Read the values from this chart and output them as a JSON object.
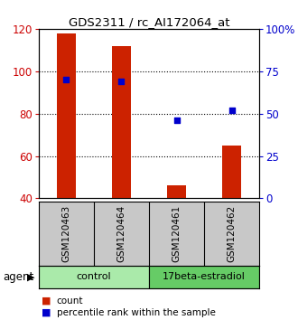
{
  "title": "GDS2311 / rc_AI172064_at",
  "samples": [
    "GSM120463",
    "GSM120464",
    "GSM120461",
    "GSM120462"
  ],
  "counts": [
    118,
    112,
    46,
    65
  ],
  "percentile_ranks": [
    70,
    69,
    46,
    52
  ],
  "ylim_left": [
    40,
    120
  ],
  "ylim_right": [
    0,
    100
  ],
  "yticks_left": [
    40,
    60,
    80,
    100,
    120
  ],
  "yticks_right": [
    0,
    25,
    50,
    75,
    100
  ],
  "ytick_labels_right": [
    "0",
    "25",
    "50",
    "75",
    "100%"
  ],
  "bar_color": "#cc2200",
  "dot_color": "#0000cc",
  "plot_bg": "#ffffff",
  "sample_bg": "#c8c8c8",
  "control_bg": "#aaeaaa",
  "estradiol_bg": "#66cc66",
  "legend_count": "count",
  "legend_pct": "percentile rank within the sample",
  "bar_width": 0.35,
  "left_tick_color": "#cc0000",
  "right_tick_color": "#0000cc"
}
